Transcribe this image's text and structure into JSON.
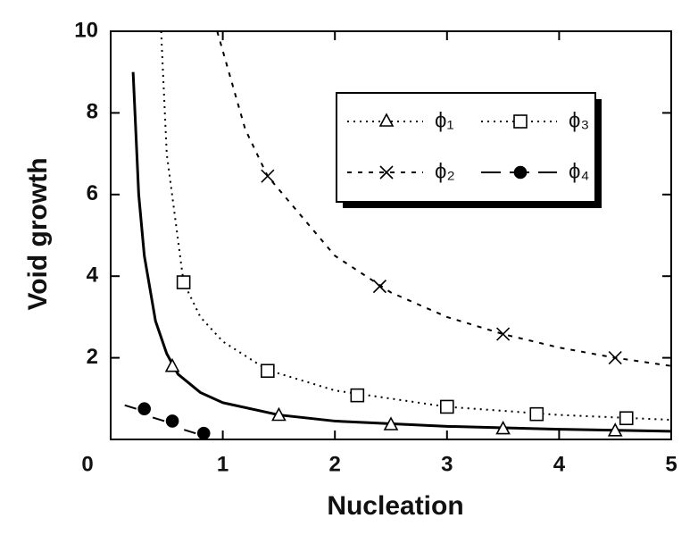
{
  "chart_data": {
    "type": "scatter",
    "x_label": "Nucleation",
    "y_label": "Void growth",
    "xlim": [
      0,
      5
    ],
    "ylim": [
      0,
      10
    ],
    "xticks": [
      0,
      1,
      2,
      3,
      4,
      5
    ],
    "yticks": [
      2,
      4,
      6,
      8,
      10
    ],
    "grid": false,
    "legend": "upper right",
    "series": [
      {
        "name": "ϕ₁",
        "color": "#000",
        "marker": "triangle",
        "line": "dotted",
        "x": [
          0.55,
          1.5,
          2.5,
          3.5,
          4.5
        ],
        "values": [
          1.78,
          0.58,
          0.35,
          0.25,
          0.2
        ],
        "fit": {
          "line": "solid",
          "x": [
            0.2,
            0.25,
            0.3,
            0.4,
            0.5,
            0.6,
            0.8,
            1.0,
            1.5,
            2,
            3,
            4,
            5
          ],
          "values": [
            9,
            6,
            4.5,
            2.9,
            2.1,
            1.6,
            1.15,
            0.9,
            0.6,
            0.45,
            0.32,
            0.25,
            0.2
          ]
        }
      },
      {
        "name": "ϕ₂",
        "color": "#000",
        "marker": "x",
        "line": "dashed",
        "x": [
          1.4,
          2.4,
          3.5,
          4.5
        ],
        "values": [
          6.45,
          3.75,
          2.58,
          2.0
        ],
        "fit": {
          "line": "dashed",
          "x": [
            0.95,
            1.2,
            1.4,
            2,
            2.5,
            3,
            3.5,
            4,
            4.5,
            5
          ],
          "values": [
            10,
            7.6,
            6.45,
            4.5,
            3.6,
            3.0,
            2.58,
            2.25,
            2.0,
            1.8
          ]
        }
      },
      {
        "name": "ϕ₃",
        "color": "#000",
        "marker": "square",
        "line": "dotted",
        "x": [
          0.65,
          1.4,
          2.2,
          3.0,
          3.8,
          4.6
        ],
        "values": [
          3.85,
          1.68,
          1.08,
          0.8,
          0.62,
          0.52
        ],
        "fit": {
          "line": "dotted",
          "x": [
            0.45,
            0.5,
            0.65,
            0.8,
            1,
            1.4,
            2,
            3,
            4,
            5
          ],
          "values": [
            10,
            7,
            3.85,
            3.0,
            2.4,
            1.7,
            1.2,
            0.8,
            0.6,
            0.48
          ]
        }
      },
      {
        "name": "ϕ₄",
        "color": "#000",
        "marker": "circle",
        "line": "longdash",
        "x": [
          0.3,
          0.55,
          0.83
        ],
        "values": [
          0.75,
          0.45,
          0.15
        ]
      }
    ]
  }
}
